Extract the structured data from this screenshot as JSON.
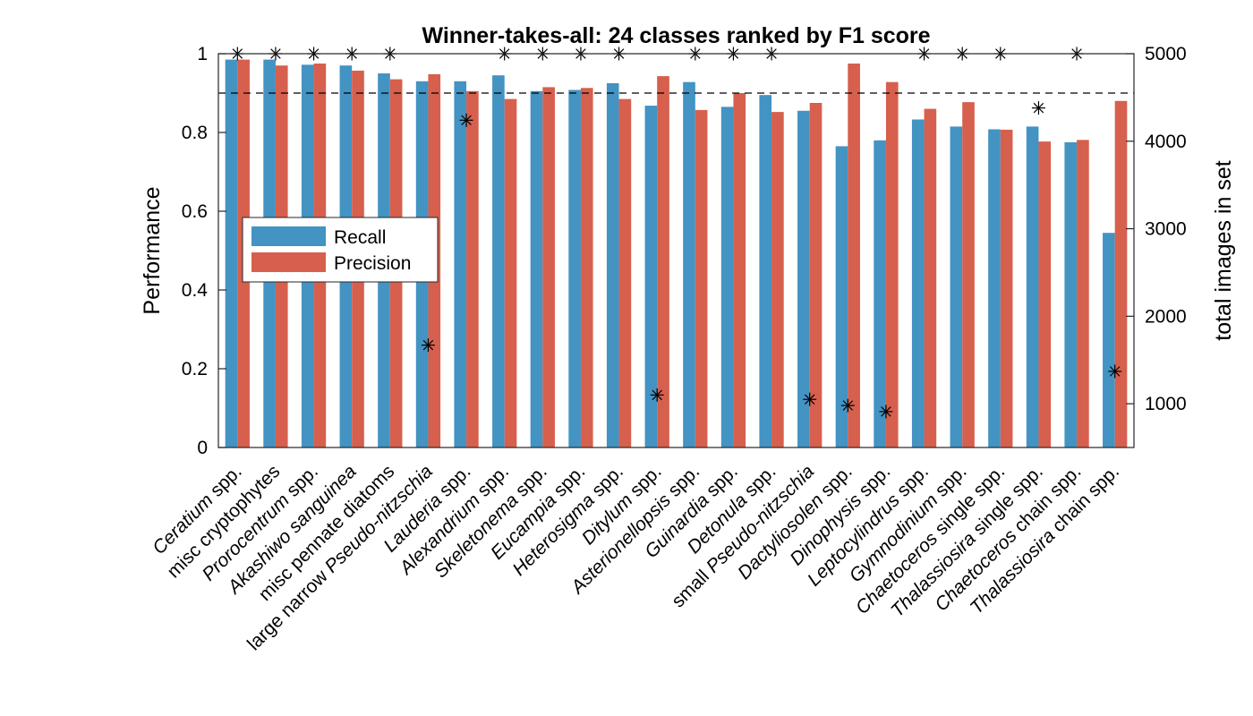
{
  "chart_data": {
    "type": "bar",
    "title": "Winner-takes-all: 24 classes ranked by F1 score",
    "ylabel": "Performance",
    "ylabel_right": "total images in set",
    "ylim": [
      0,
      1
    ],
    "ylim_right": [
      500,
      5000
    ],
    "yticks": [
      0,
      0.2,
      0.4,
      0.6,
      0.8,
      1
    ],
    "yticks_right": [
      1000,
      2000,
      3000,
      4000,
      5000
    ],
    "reference_line": 0.9,
    "legend_position": "center-left",
    "categories": [
      {
        "italic": "Ceratium",
        "plain": " spp."
      },
      {
        "italic": "",
        "plain": "misc cryptophytes"
      },
      {
        "italic": "Prorocentrum",
        "plain": " spp."
      },
      {
        "italic": "Akashiwo sanguinea",
        "plain": ""
      },
      {
        "italic": "",
        "plain": "misc pennate diatoms"
      },
      {
        "italic": "",
        "plain": "large narrow ",
        "italic2": "Pseudo-nitzschia"
      },
      {
        "italic": "Lauderia",
        "plain": " spp."
      },
      {
        "italic": "Alexandrium",
        "plain": " spp."
      },
      {
        "italic": "Skeletonema",
        "plain": " spp."
      },
      {
        "italic": "Eucampia",
        "plain": " spp."
      },
      {
        "italic": "Heterosigma",
        "plain": " spp."
      },
      {
        "italic": "Ditylum",
        "plain": " spp."
      },
      {
        "italic": "Asterionellopsis",
        "plain": " spp."
      },
      {
        "italic": "Guinardia",
        "plain": " spp."
      },
      {
        "italic": "Detonula",
        "plain": " spp."
      },
      {
        "italic": "",
        "plain": "small ",
        "italic2": "Pseudo-nitzschia"
      },
      {
        "italic": "Dactyliosolen",
        "plain": " spp."
      },
      {
        "italic": "Dinophysis",
        "plain": " spp."
      },
      {
        "italic": "Leptocylindrus",
        "plain": " spp."
      },
      {
        "italic": "Gymnodinium",
        "plain": " spp."
      },
      {
        "italic": "Chaetoceros",
        "plain": " single spp."
      },
      {
        "italic": "Thalassiosira",
        "plain": " single spp."
      },
      {
        "italic": "Chaetoceros",
        "plain": " chain spp."
      },
      {
        "italic": "Thalassiosira",
        "plain": " chain spp."
      }
    ],
    "series": [
      {
        "name": "Recall",
        "color": "#4393c3",
        "values": [
          0.985,
          0.985,
          0.972,
          0.97,
          0.95,
          0.93,
          0.93,
          0.945,
          0.905,
          0.908,
          0.925,
          0.868,
          0.928,
          0.865,
          0.895,
          0.855,
          0.765,
          0.78,
          0.833,
          0.815,
          0.808,
          0.815,
          0.775,
          0.545
        ]
      },
      {
        "name": "Precision",
        "color": "#d6604d",
        "values": [
          0.985,
          0.97,
          0.975,
          0.957,
          0.935,
          0.948,
          0.905,
          0.885,
          0.915,
          0.913,
          0.885,
          0.943,
          0.857,
          0.9,
          0.852,
          0.875,
          0.975,
          0.928,
          0.86,
          0.877,
          0.807,
          0.777,
          0.781,
          0.88
        ]
      }
    ],
    "total_images": [
      5000,
      5000,
      5000,
      5000,
      5000,
      1670,
      4240,
      5000,
      5000,
      5000,
      5000,
      1100,
      5000,
      5000,
      5000,
      1050,
      980,
      910,
      5000,
      5000,
      5000,
      4380,
      5000,
      1370
    ]
  }
}
